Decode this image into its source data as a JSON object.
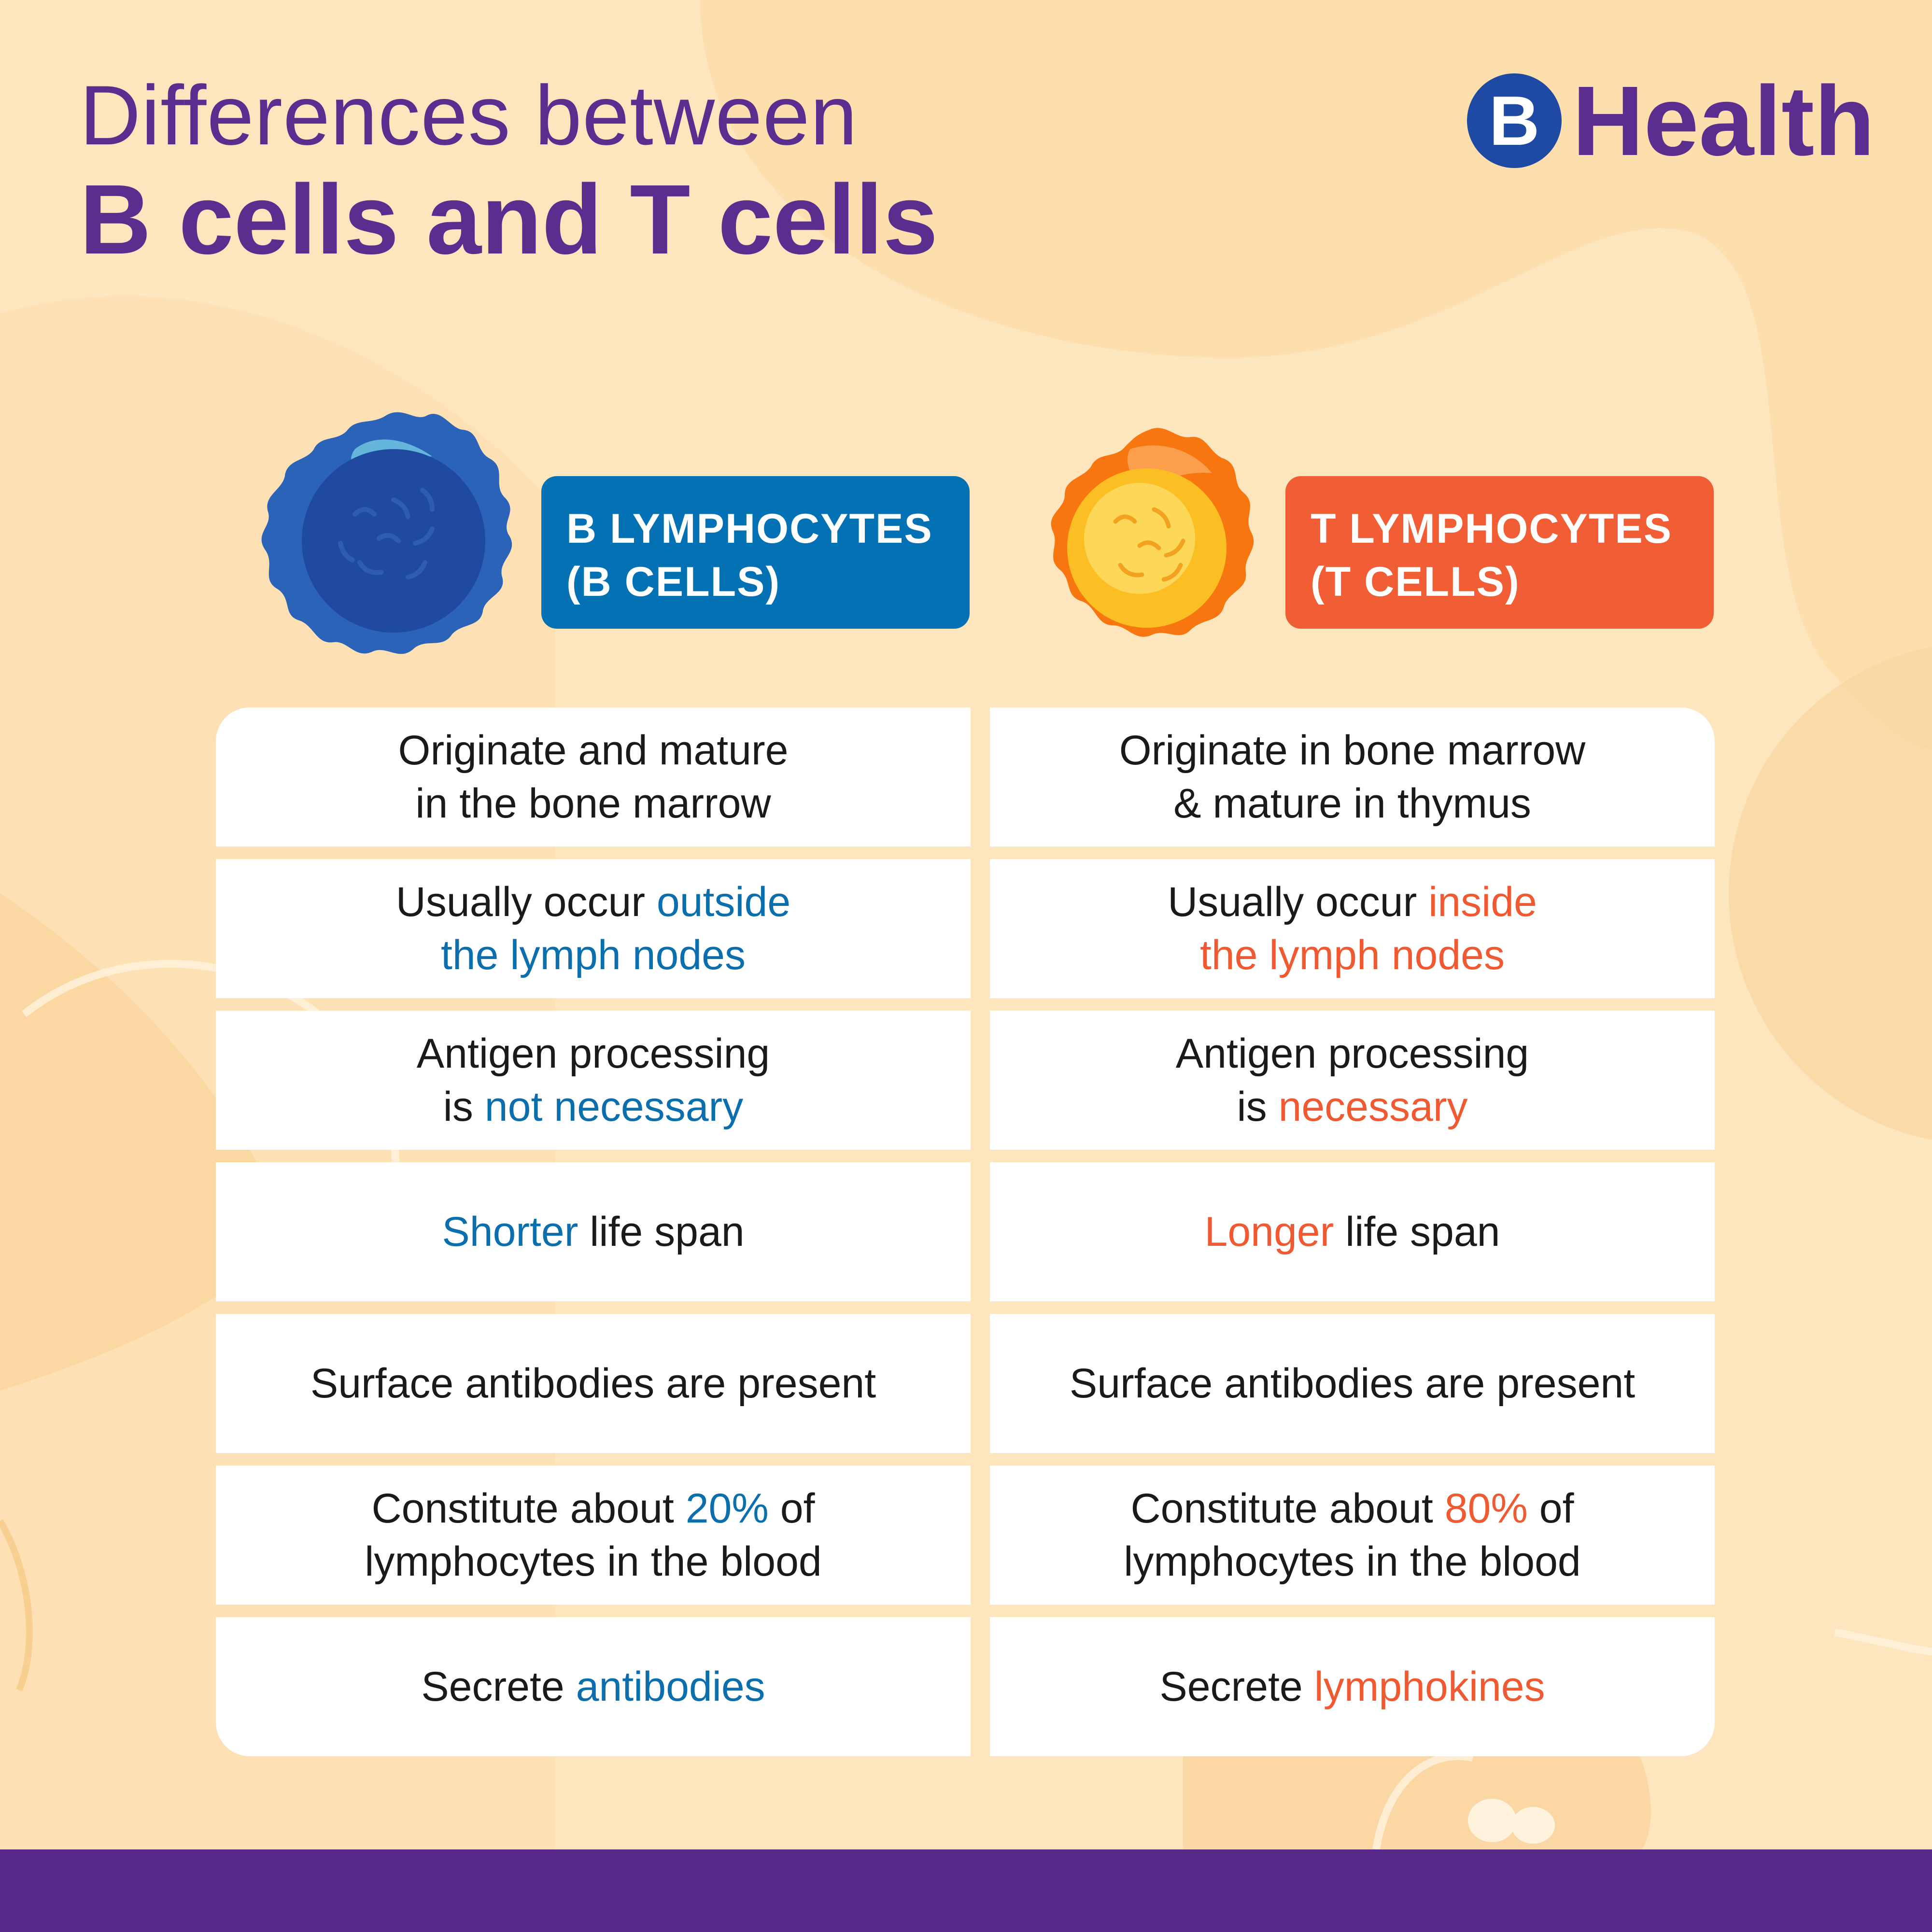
{
  "title": {
    "line1": "Differences between",
    "line2": "B cells and T cells"
  },
  "brand": {
    "badge_letter": "B",
    "name": "Health",
    "color": "#5a2d8f",
    "badge_color": "#1f4aa3"
  },
  "columns": {
    "b": {
      "header_line1": "B LYMPHOCYTES",
      "header_line2": "(B CELLS)",
      "header_color": "#0471b5",
      "highlight_color": "#0c6fad",
      "icon": "b-cell-illustration",
      "rows": [
        {
          "parts": [
            {
              "text": "Originate and mature"
            },
            {
              "br": true
            },
            {
              "text": "in the bone marrow"
            }
          ]
        },
        {
          "parts": [
            {
              "text": "Usually occur "
            },
            {
              "text": "outside",
              "hl": true
            },
            {
              "br": true
            },
            {
              "text": "the lymph nodes",
              "hl": true
            }
          ]
        },
        {
          "parts": [
            {
              "text": "Antigen processing"
            },
            {
              "br": true
            },
            {
              "text": "is "
            },
            {
              "text": "not necessary",
              "hl": true
            }
          ]
        },
        {
          "parts": [
            {
              "text": "Shorter",
              "hl": true
            },
            {
              "text": " life span"
            }
          ]
        },
        {
          "parts": [
            {
              "text": "Surface antibodies are present"
            }
          ]
        },
        {
          "parts": [
            {
              "text": "Constitute about "
            },
            {
              "text": "20%",
              "hl": true
            },
            {
              "text": " of"
            },
            {
              "br": true
            },
            {
              "text": "lymphocytes in the blood"
            }
          ]
        },
        {
          "parts": [
            {
              "text": "Secrete "
            },
            {
              "text": "antibodies",
              "hl": true
            }
          ]
        }
      ]
    },
    "t": {
      "header_line1": "T LYMPHOCYTES",
      "header_line2": "(T CELLS)",
      "header_color": "#f15d35",
      "highlight_color": "#f05a33",
      "icon": "t-cell-illustration",
      "rows": [
        {
          "parts": [
            {
              "text": "Originate in bone marrow"
            },
            {
              "br": true
            },
            {
              "text": "& mature in thymus"
            }
          ]
        },
        {
          "parts": [
            {
              "text": "Usually occur "
            },
            {
              "text": "inside",
              "hl": true
            },
            {
              "br": true
            },
            {
              "text": "the lymph nodes",
              "hl": true
            }
          ]
        },
        {
          "parts": [
            {
              "text": "Antigen processing"
            },
            {
              "br": true
            },
            {
              "text": "is "
            },
            {
              "text": "necessary",
              "hl": true
            }
          ]
        },
        {
          "parts": [
            {
              "text": "Longer",
              "hl": true
            },
            {
              "text": " life span"
            }
          ]
        },
        {
          "parts": [
            {
              "text": "Surface antibodies are present"
            }
          ]
        },
        {
          "parts": [
            {
              "text": "Constitute about "
            },
            {
              "text": "80%",
              "hl": true
            },
            {
              "text": " of"
            },
            {
              "br": true
            },
            {
              "text": "lymphocytes in the blood"
            }
          ]
        },
        {
          "parts": [
            {
              "text": "Secrete "
            },
            {
              "text": "lymphokines",
              "hl": true
            }
          ]
        }
      ]
    }
  },
  "colors": {
    "background": "#fde5bd",
    "blob": "#fce0b0",
    "footer": "#5a2a8a",
    "title": "#5a2d8f"
  }
}
